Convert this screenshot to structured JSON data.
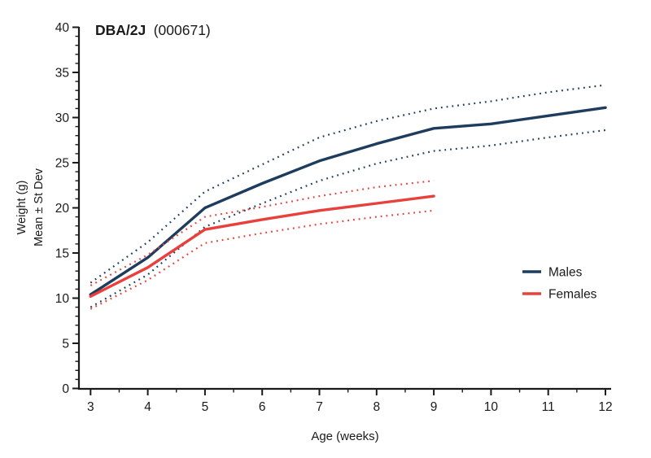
{
  "chart_data": {
    "type": "line",
    "title_strain": "DBA/2J",
    "title_stock": "(000671)",
    "xlabel": "Age (weeks)",
    "ylabel_line1": "Weight (g)",
    "ylabel_line2": "Mean ± St Dev",
    "xlim": [
      3,
      12
    ],
    "ylim": [
      0,
      40
    ],
    "x_major_ticks": [
      3,
      4,
      5,
      6,
      7,
      8,
      9,
      10,
      11,
      12
    ],
    "x_minor_step": 0.5,
    "y_major_ticks": [
      0,
      5,
      10,
      15,
      20,
      25,
      30,
      35,
      40
    ],
    "y_minor_step": 1,
    "grid": "off",
    "legend_position": "right-middle",
    "colors": {
      "males": "#1d3c5e",
      "females": "#e8403c"
    },
    "legend_items": [
      {
        "label": "Males",
        "color": "#1d3c5e"
      },
      {
        "label": "Females",
        "color": "#e8403c"
      }
    ],
    "series": [
      {
        "name": "males-mean",
        "group": "Males",
        "stat": "mean",
        "style": "solid",
        "color": "#1d3c5e",
        "x": [
          3,
          4,
          5,
          6,
          7,
          8,
          9,
          10,
          11,
          12
        ],
        "y": [
          10.4,
          14.5,
          20.0,
          22.7,
          25.2,
          27.1,
          28.8,
          29.3,
          30.2,
          31.1
        ]
      },
      {
        "name": "males-plus-sd",
        "group": "Males",
        "stat": "mean+sd",
        "style": "dotted",
        "color": "#1d3c5e",
        "x": [
          3,
          4,
          5,
          6,
          7,
          8,
          9,
          10,
          11,
          12
        ],
        "y": [
          11.7,
          16.2,
          21.8,
          24.8,
          27.8,
          29.6,
          31.0,
          31.8,
          32.8,
          33.6
        ]
      },
      {
        "name": "males-minus-sd",
        "group": "Males",
        "stat": "mean-sd",
        "style": "dotted",
        "color": "#1d3c5e",
        "x": [
          3,
          4,
          5,
          6,
          7,
          8,
          9,
          10,
          11,
          12
        ],
        "y": [
          9.0,
          12.6,
          17.9,
          20.5,
          23.0,
          24.9,
          26.3,
          26.9,
          27.8,
          28.6
        ]
      },
      {
        "name": "females-mean",
        "group": "Females",
        "stat": "mean",
        "style": "solid",
        "color": "#e8403c",
        "x": [
          3,
          4,
          5,
          6,
          7,
          8,
          9
        ],
        "y": [
          10.2,
          13.4,
          17.6,
          18.7,
          19.7,
          20.5,
          21.3
        ]
      },
      {
        "name": "females-plus-sd",
        "group": "Females",
        "stat": "mean+sd",
        "style": "dotted",
        "color": "#e8403c",
        "x": [
          3,
          4,
          5,
          6,
          7,
          8,
          9
        ],
        "y": [
          11.4,
          14.8,
          19.0,
          20.1,
          21.3,
          22.3,
          23.0
        ]
      },
      {
        "name": "females-minus-sd",
        "group": "Females",
        "stat": "mean-sd",
        "style": "dotted",
        "color": "#e8403c",
        "x": [
          3,
          4,
          5,
          6,
          7,
          8,
          9
        ],
        "y": [
          8.8,
          12.0,
          16.1,
          17.2,
          18.2,
          19.0,
          19.7
        ]
      }
    ]
  }
}
